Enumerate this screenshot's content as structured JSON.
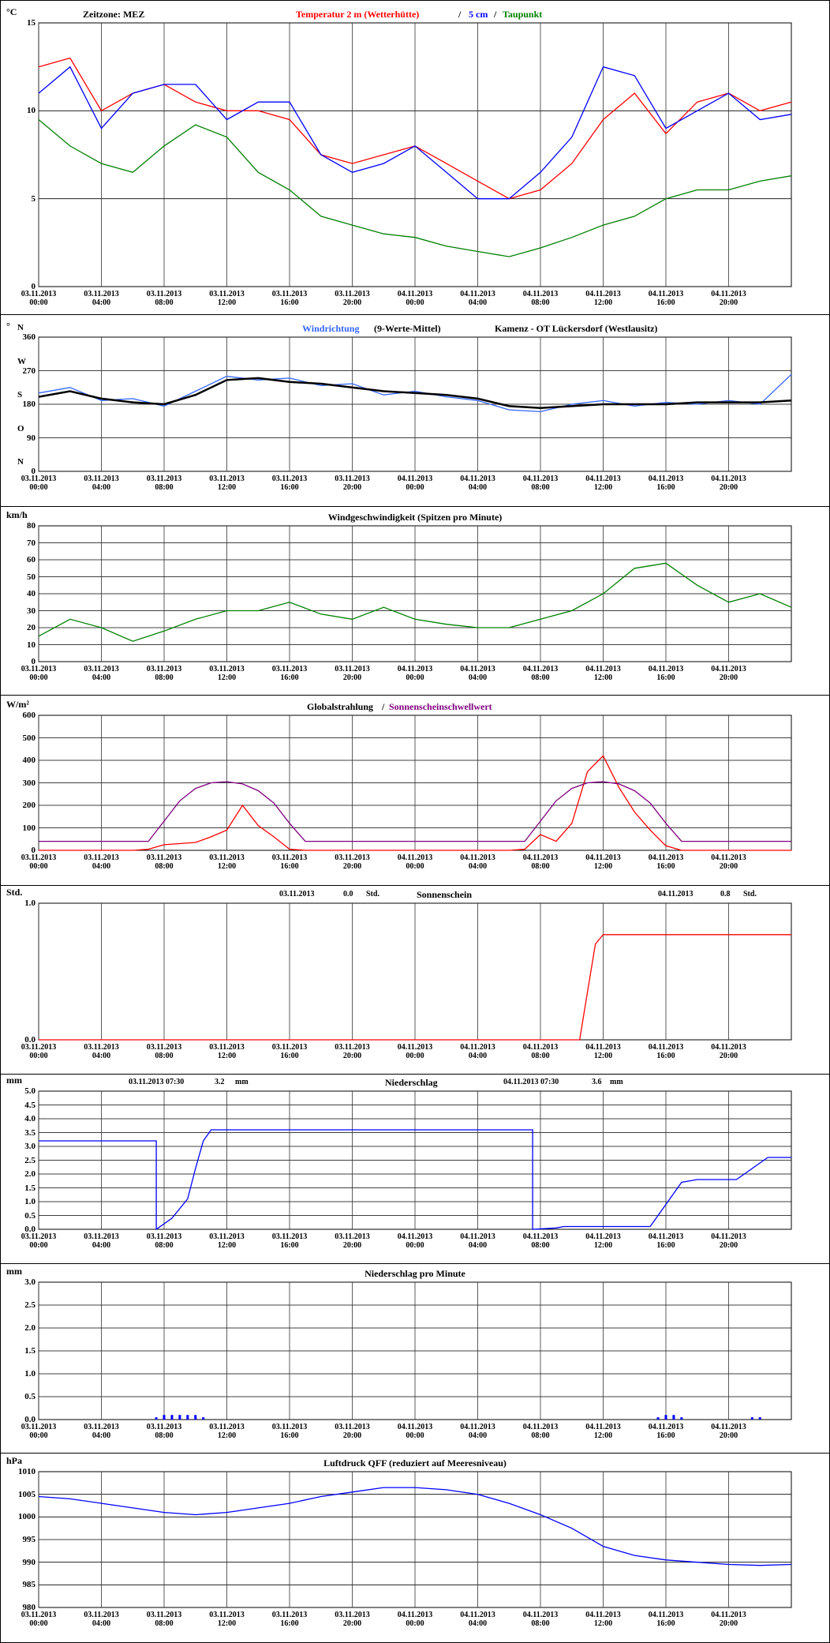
{
  "chart_data": [
    {
      "type": "line",
      "y_unit": "°C",
      "note": "Zeitzone: MEZ",
      "separator": "/",
      "x": [
        "03.11.2013 00:00",
        "03.11.2013 02:00",
        "03.11.2013 04:00",
        "03.11.2013 06:00",
        "03.11.2013 08:00",
        "03.11.2013 10:00",
        "03.11.2013 12:00",
        "03.11.2013 14:00",
        "03.11.2013 16:00",
        "03.11.2013 18:00",
        "03.11.2013 20:00",
        "03.11.2013 22:00",
        "04.11.2013 00:00",
        "04.11.2013 02:00",
        "04.11.2013 04:00",
        "04.11.2013 06:00",
        "04.11.2013 08:00",
        "04.11.2013 10:00",
        "04.11.2013 12:00",
        "04.11.2013 14:00",
        "04.11.2013 16:00",
        "04.11.2013 18:00",
        "04.11.2013 20:00",
        "04.11.2013 22:00",
        "05.11.2013 00:00"
      ],
      "series": [
        {
          "name": "Temperatur 2 m (Wetterhütte)",
          "color": "#ff0000",
          "values": [
            12.5,
            13,
            10,
            11,
            11.5,
            10.5,
            10,
            10,
            9.5,
            7.5,
            7,
            7.5,
            8,
            7,
            6,
            5,
            5.5,
            7,
            9.5,
            11,
            8.7,
            10.5,
            11,
            10,
            10.5
          ]
        },
        {
          "name": "5 cm",
          "color": "#0000ff",
          "values": [
            11,
            12.5,
            9,
            11,
            11.5,
            11.5,
            9.5,
            10.5,
            10.5,
            7.5,
            6.5,
            7,
            8,
            6.5,
            5,
            5,
            6.5,
            8.5,
            12.5,
            12,
            9,
            10,
            11,
            9.5,
            9.8
          ]
        },
        {
          "name": "Taupunkt",
          "color": "#008000",
          "values": [
            9.5,
            8,
            7,
            6.5,
            8,
            9.2,
            8.5,
            6.5,
            5.5,
            4,
            3.5,
            3,
            2.8,
            2.3,
            2,
            1.7,
            2.2,
            2.8,
            3.5,
            4,
            5,
            5.5,
            5.5,
            6,
            6.3
          ]
        }
      ],
      "xlim": [
        "03.11.2013 00:00",
        "05.11.2013 00:00"
      ],
      "xticks": [
        "03.11.2013 00:00",
        "03.11.2013 04:00",
        "03.11.2013 08:00",
        "03.11.2013 12:00",
        "03.11.2013 16:00",
        "03.11.2013 20:00",
        "04.11.2013 00:00",
        "04.11.2013 04:00",
        "04.11.2013 08:00",
        "04.11.2013 12:00",
        "04.11.2013 16:00",
        "04.11.2013 20:00"
      ],
      "ylim": [
        0,
        15
      ],
      "yticks": [
        0,
        5,
        10,
        15
      ]
    },
    {
      "type": "line",
      "y_unit": "°",
      "title": "(9-Werte-Mittel)",
      "station": "Kamenz - OT Lückersdorf (Westlausitz)",
      "ytick_letters": [
        "N",
        "O",
        "S",
        "W",
        "N"
      ],
      "x": [
        "03.11.2013 00:00",
        "03.11.2013 02:00",
        "03.11.2013 04:00",
        "03.11.2013 06:00",
        "03.11.2013 08:00",
        "03.11.2013 10:00",
        "03.11.2013 12:00",
        "03.11.2013 14:00",
        "03.11.2013 16:00",
        "03.11.2013 18:00",
        "03.11.2013 20:00",
        "03.11.2013 22:00",
        "04.11.2013 00:00",
        "04.11.2013 02:00",
        "04.11.2013 04:00",
        "04.11.2013 06:00",
        "04.11.2013 08:00",
        "04.11.2013 10:00",
        "04.11.2013 12:00",
        "04.11.2013 14:00",
        "04.11.2013 16:00",
        "04.11.2013 18:00",
        "04.11.2013 20:00",
        "04.11.2013 22:00",
        "05.11.2013 00:00"
      ],
      "series": [
        {
          "name": "Windrichtung",
          "color": "#3366ff",
          "values": [
            210,
            225,
            190,
            195,
            175,
            215,
            255,
            245,
            250,
            230,
            235,
            205,
            215,
            200,
            190,
            165,
            160,
            180,
            190,
            175,
            185,
            180,
            190,
            180,
            260
          ]
        },
        {
          "color": "#000000",
          "values": [
            200,
            215,
            195,
            185,
            180,
            205,
            245,
            250,
            240,
            235,
            225,
            215,
            210,
            205,
            195,
            175,
            170,
            175,
            180,
            180,
            180,
            185,
            185,
            185,
            190
          ]
        }
      ],
      "xlim": [
        "03.11.2013 00:00",
        "05.11.2013 00:00"
      ],
      "xticks": [
        "03.11.2013 00:00",
        "03.11.2013 04:00",
        "03.11.2013 08:00",
        "03.11.2013 12:00",
        "03.11.2013 16:00",
        "03.11.2013 20:00",
        "04.11.2013 00:00",
        "04.11.2013 04:00",
        "04.11.2013 08:00",
        "04.11.2013 12:00",
        "04.11.2013 16:00",
        "04.11.2013 20:00"
      ],
      "ylim": [
        0,
        360
      ],
      "yticks": [
        0,
        90,
        180,
        270,
        360
      ]
    },
    {
      "type": "line",
      "y_unit": "km/h",
      "title": "Windgeschwindigkeit (Spitzen pro Minute)",
      "x": [
        "03.11.2013 00:00",
        "03.11.2013 02:00",
        "03.11.2013 04:00",
        "03.11.2013 06:00",
        "03.11.2013 08:00",
        "03.11.2013 10:00",
        "03.11.2013 12:00",
        "03.11.2013 14:00",
        "03.11.2013 16:00",
        "03.11.2013 18:00",
        "03.11.2013 20:00",
        "03.11.2013 22:00",
        "04.11.2013 00:00",
        "04.11.2013 02:00",
        "04.11.2013 04:00",
        "04.11.2013 06:00",
        "04.11.2013 08:00",
        "04.11.2013 10:00",
        "04.11.2013 12:00",
        "04.11.2013 14:00",
        "04.11.2013 16:00",
        "04.11.2013 18:00",
        "04.11.2013 20:00",
        "04.11.2013 22:00",
        "05.11.2013 00:00"
      ],
      "series": [
        {
          "color": "#008000",
          "values": [
            15,
            25,
            20,
            12,
            18,
            25,
            30,
            30,
            35,
            28,
            25,
            32,
            25,
            22,
            20,
            20,
            25,
            30,
            40,
            55,
            58,
            45,
            35,
            40,
            32
          ]
        }
      ],
      "xlim": [
        "03.11.2013 00:00",
        "05.11.2013 00:00"
      ],
      "xticks": [
        "03.11.2013 00:00",
        "03.11.2013 04:00",
        "03.11.2013 08:00",
        "03.11.2013 12:00",
        "03.11.2013 16:00",
        "03.11.2013 20:00",
        "04.11.2013 00:00",
        "04.11.2013 04:00",
        "04.11.2013 08:00",
        "04.11.2013 12:00",
        "04.11.2013 16:00",
        "04.11.2013 20:00"
      ],
      "ylim": [
        0,
        80
      ],
      "yticks": [
        0,
        10,
        20,
        30,
        40,
        50,
        60,
        70,
        80
      ]
    },
    {
      "type": "line",
      "y_unit": "W/m²",
      "separator": "/",
      "x": [
        "03.11.2013 00:00",
        "03.11.2013 01:00",
        "03.11.2013 02:00",
        "03.11.2013 03:00",
        "03.11.2013 04:00",
        "03.11.2013 05:00",
        "03.11.2013 06:00",
        "03.11.2013 07:00",
        "03.11.2013 08:00",
        "03.11.2013 09:00",
        "03.11.2013 10:00",
        "03.11.2013 11:00",
        "03.11.2013 12:00",
        "03.11.2013 13:00",
        "03.11.2013 14:00",
        "03.11.2013 15:00",
        "03.11.2013 16:00",
        "03.11.2013 17:00",
        "03.11.2013 18:00",
        "03.11.2013 19:00",
        "03.11.2013 20:00",
        "03.11.2013 21:00",
        "03.11.2013 22:00",
        "03.11.2013 23:00",
        "04.11.2013 00:00",
        "04.11.2013 01:00",
        "04.11.2013 02:00",
        "04.11.2013 03:00",
        "04.11.2013 04:00",
        "04.11.2013 05:00",
        "04.11.2013 06:00",
        "04.11.2013 07:00",
        "04.11.2013 08:00",
        "04.11.2013 09:00",
        "04.11.2013 10:00",
        "04.11.2013 11:00",
        "04.11.2013 12:00",
        "04.11.2013 13:00",
        "04.11.2013 14:00",
        "04.11.2013 15:00",
        "04.11.2013 16:00",
        "04.11.2013 17:00",
        "04.11.2013 18:00",
        "04.11.2013 19:00",
        "04.11.2013 20:00",
        "04.11.2013 21:00",
        "04.11.2013 22:00",
        "04.11.2013 23:00",
        "05.11.2013 00:00"
      ],
      "series": [
        {
          "name": "Globalstrahlung",
          "color": "#ff0000",
          "values": [
            0,
            0,
            0,
            0,
            0,
            0,
            0,
            5,
            25,
            30,
            35,
            60,
            90,
            200,
            110,
            60,
            5,
            0,
            0,
            0,
            0,
            0,
            0,
            0,
            0,
            0,
            0,
            0,
            0,
            0,
            0,
            5,
            70,
            40,
            120,
            350,
            420,
            280,
            170,
            90,
            20,
            0,
            0,
            0,
            0,
            0,
            0,
            0,
            0
          ]
        },
        {
          "name": "Sonnenscheinschwellwert",
          "color": "#800080",
          "values": [
            40,
            40,
            40,
            40,
            40,
            40,
            40,
            40,
            130,
            220,
            275,
            300,
            305,
            295,
            265,
            210,
            120,
            40,
            40,
            40,
            40,
            40,
            40,
            40,
            40,
            40,
            40,
            40,
            40,
            40,
            40,
            40,
            130,
            220,
            275,
            300,
            305,
            295,
            265,
            210,
            120,
            40,
            40,
            40,
            40,
            40,
            40,
            40,
            40
          ]
        }
      ],
      "xlim": [
        "03.11.2013 00:00",
        "05.11.2013 00:00"
      ],
      "xticks": [
        "03.11.2013 00:00",
        "03.11.2013 04:00",
        "03.11.2013 08:00",
        "03.11.2013 12:00",
        "03.11.2013 16:00",
        "03.11.2013 20:00",
        "04.11.2013 00:00",
        "04.11.2013 04:00",
        "04.11.2013 08:00",
        "04.11.2013 12:00",
        "04.11.2013 16:00",
        "04.11.2013 20:00"
      ],
      "ylim": [
        0,
        600
      ],
      "yticks": [
        0,
        100,
        200,
        300,
        400,
        500,
        600
      ]
    },
    {
      "type": "line",
      "y_unit": "Std.",
      "title": "Sonnenschein",
      "totals": [
        {
          "date": "03.11.2013",
          "sum": "0.0",
          "unit": "Std."
        },
        {
          "date": "04.11.2013",
          "sum": "0.8",
          "unit": "Std."
        }
      ],
      "x": [
        "03.11.2013 00:00",
        "04.11.2013 10:30",
        "04.11.2013 11:00",
        "04.11.2013 11:30",
        "04.11.2013 12:00",
        "05.11.2013 00:00"
      ],
      "series": [
        {
          "color": "#ff0000",
          "values": [
            0,
            0,
            0.35,
            0.7,
            0.77,
            0.77
          ]
        }
      ],
      "xlim": [
        "03.11.2013 00:00",
        "05.11.2013 00:00"
      ],
      "xticks": [
        "03.11.2013 00:00",
        "03.11.2013 04:00",
        "03.11.2013 08:00",
        "03.11.2013 12:00",
        "03.11.2013 16:00",
        "03.11.2013 20:00",
        "04.11.2013 00:00",
        "04.11.2013 04:00",
        "04.11.2013 08:00",
        "04.11.2013 12:00",
        "04.11.2013 16:00",
        "04.11.2013 20:00"
      ],
      "ylim": [
        0,
        1
      ],
      "yticks": [
        {
          "value": 0,
          "label": "0.0"
        },
        {
          "value": 1,
          "label": "1.0"
        }
      ]
    },
    {
      "type": "line",
      "y_unit": "mm",
      "title": "Niederschlag",
      "totals": [
        {
          "date": "03.11.2013 07:30",
          "sum": "3.2",
          "unit": "mm"
        },
        {
          "date": "04.11.2013 07:30",
          "sum": "3.6",
          "unit": "mm"
        }
      ],
      "x": [
        "03.11.2013 00:00",
        "03.11.2013 07:30",
        "03.11.2013 07:30",
        "03.11.2013 08:30",
        "03.11.2013 09:30",
        "03.11.2013 10:00",
        "03.11.2013 10:30",
        "03.11.2013 11:00",
        "04.11.2013 07:30",
        "04.11.2013 07:30",
        "04.11.2013 09:00",
        "04.11.2013 09:30",
        "04.11.2013 15:00",
        "04.11.2013 16:00",
        "04.11.2013 17:00",
        "04.11.2013 18:00",
        "04.11.2013 20:30",
        "04.11.2013 21:30",
        "04.11.2013 22:30",
        "05.11.2013 00:00"
      ],
      "series": [
        {
          "color": "#0000ff",
          "values": [
            3.2,
            3.2,
            0,
            0.4,
            1.1,
            2.2,
            3.2,
            3.6,
            3.6,
            0,
            0.05,
            0.1,
            0.1,
            0.9,
            1.7,
            1.8,
            1.8,
            2.2,
            2.6,
            2.6
          ]
        }
      ],
      "xlim": [
        "03.11.2013 00:00",
        "05.11.2013 00:00"
      ],
      "xticks": [
        "03.11.2013 00:00",
        "03.11.2013 04:00",
        "03.11.2013 08:00",
        "03.11.2013 12:00",
        "03.11.2013 16:00",
        "03.11.2013 20:00",
        "04.11.2013 00:00",
        "04.11.2013 04:00",
        "04.11.2013 08:00",
        "04.11.2013 12:00",
        "04.11.2013 16:00",
        "04.11.2013 20:00"
      ],
      "ylim": [
        0,
        5
      ],
      "yticks": [
        {
          "value": 0,
          "label": "0.0"
        },
        0.5,
        {
          "value": 1,
          "label": "1.0"
        },
        1.5,
        {
          "value": 2,
          "label": "2.0"
        },
        2.5,
        {
          "value": 3,
          "label": "3.0"
        },
        3.5,
        {
          "value": 4,
          "label": "4.0"
        },
        4.5,
        {
          "value": 5,
          "label": "5.0"
        }
      ]
    },
    {
      "type": "bar",
      "y_unit": "mm",
      "title": "Niederschlag pro Minute",
      "x": [
        "03.11.2013 07:30",
        "03.11.2013 08:00",
        "03.11.2013 08:30",
        "03.11.2013 09:00",
        "03.11.2013 09:30",
        "03.11.2013 10:00",
        "03.11.2013 10:30",
        "04.11.2013 15:30",
        "04.11.2013 16:00",
        "04.11.2013 16:30",
        "04.11.2013 17:00",
        "04.11.2013 21:30",
        "04.11.2013 22:00"
      ],
      "series": [
        {
          "color": "#0000ff",
          "values": [
            0.05,
            0.1,
            0.1,
            0.1,
            0.1,
            0.1,
            0.05,
            0.05,
            0.1,
            0.1,
            0.05,
            0.05,
            0.05
          ]
        }
      ],
      "xlim": [
        "03.11.2013 00:00",
        "05.11.2013 00:00"
      ],
      "xticks": [
        "03.11.2013 00:00",
        "03.11.2013 04:00",
        "03.11.2013 08:00",
        "03.11.2013 12:00",
        "03.11.2013 16:00",
        "03.11.2013 20:00",
        "04.11.2013 00:00",
        "04.11.2013 04:00",
        "04.11.2013 08:00",
        "04.11.2013 12:00",
        "04.11.2013 16:00",
        "04.11.2013 20:00"
      ],
      "ylim": [
        0,
        3
      ],
      "yticks": [
        {
          "value": 0,
          "label": "0.0"
        },
        0.5,
        {
          "value": 1,
          "label": "1.0"
        },
        1.5,
        {
          "value": 2,
          "label": "2.0"
        },
        2.5,
        {
          "value": 3,
          "label": "3.0"
        }
      ]
    },
    {
      "type": "line",
      "y_unit": "hPa",
      "title": "Luftdruck QFF (reduziert auf Meeresniveau)",
      "x": [
        "03.11.2013 00:00",
        "03.11.2013 02:00",
        "03.11.2013 04:00",
        "03.11.2013 06:00",
        "03.11.2013 08:00",
        "03.11.2013 10:00",
        "03.11.2013 12:00",
        "03.11.2013 14:00",
        "03.11.2013 16:00",
        "03.11.2013 18:00",
        "03.11.2013 20:00",
        "03.11.2013 22:00",
        "04.11.2013 00:00",
        "04.11.2013 02:00",
        "04.11.2013 04:00",
        "04.11.2013 06:00",
        "04.11.2013 08:00",
        "04.11.2013 10:00",
        "04.11.2013 12:00",
        "04.11.2013 14:00",
        "04.11.2013 16:00",
        "04.11.2013 18:00",
        "04.11.2013 20:00",
        "04.11.2013 22:00",
        "05.11.2013 00:00"
      ],
      "series": [
        {
          "color": "#0000ff",
          "values": [
            1004.5,
            1004,
            1003,
            1002,
            1001,
            1000.5,
            1001,
            1002,
            1003,
            1004.5,
            1005.5,
            1006.5,
            1006.5,
            1006,
            1005,
            1003,
            1000.5,
            997.5,
            993.5,
            991.5,
            990.5,
            990,
            989.5,
            989.3,
            989.5
          ]
        }
      ],
      "xlim": [
        "03.11.2013 00:00",
        "05.11.2013 00:00"
      ],
      "xticks": [
        "03.11.2013 00:00",
        "03.11.2013 04:00",
        "03.11.2013 08:00",
        "03.11.2013 12:00",
        "03.11.2013 16:00",
        "03.11.2013 20:00",
        "04.11.2013 00:00",
        "04.11.2013 04:00",
        "04.11.2013 08:00",
        "04.11.2013 12:00",
        "04.11.2013 16:00",
        "04.11.2013 20:00"
      ],
      "ylim": [
        980,
        1010
      ],
      "yticks": [
        980,
        985,
        990,
        995,
        1000,
        1005,
        1010
      ]
    }
  ]
}
